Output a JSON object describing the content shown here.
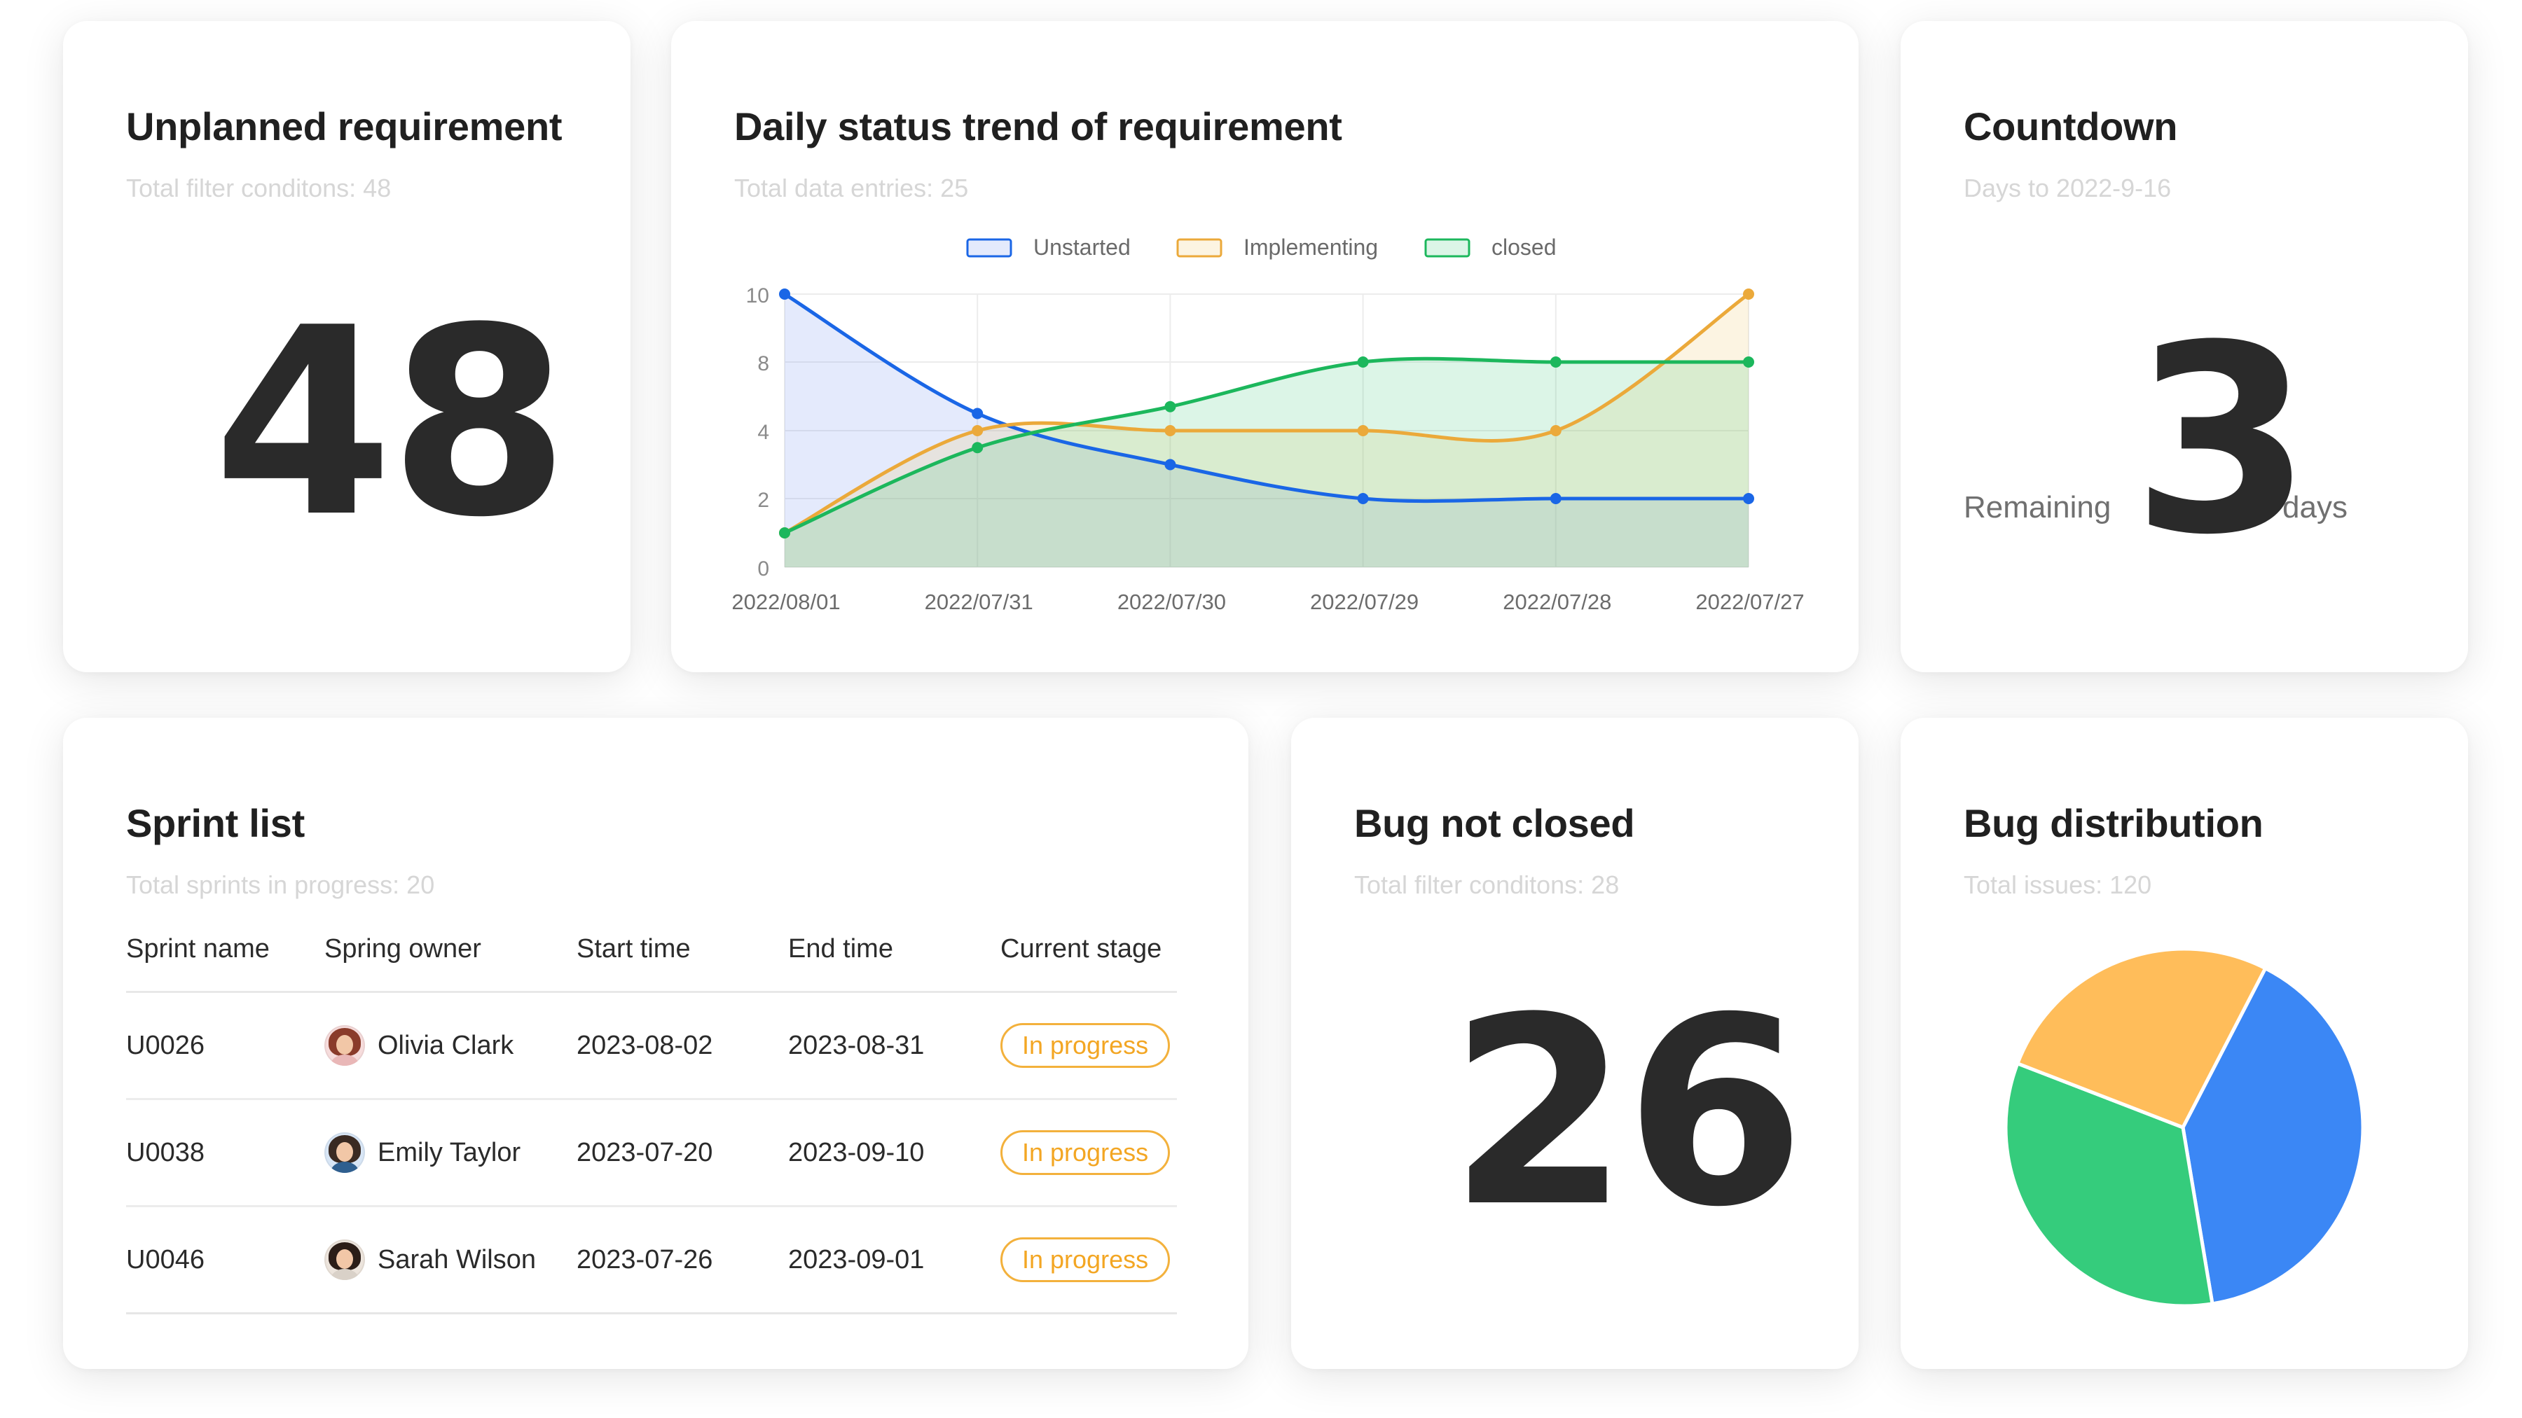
{
  "unplanned": {
    "title": "Unplanned requirement",
    "subtitle": "Total filter conditons: 48",
    "value": "48"
  },
  "trend": {
    "title": "Daily status trend of requirement",
    "subtitle": "Total data entries: 25"
  },
  "countdown": {
    "title": "Countdown",
    "subtitle": "Days to 2022-9-16",
    "prefix": "Remaining",
    "value": "3",
    "suffix": "days"
  },
  "sprint": {
    "title": "Sprint list",
    "subtitle": "Total sprints in progress: 20",
    "columns": [
      "Sprint name",
      "Spring owner",
      "Start time",
      "End time",
      "Current stage"
    ],
    "rows": [
      {
        "name": "U0026",
        "owner": "Olivia Clark",
        "start": "2023-08-02",
        "end": "2023-08-31",
        "stage": "In progress"
      },
      {
        "name": "U0038",
        "owner": "Emily Taylor",
        "start": "2023-07-20",
        "end": "2023-09-10",
        "stage": "In progress"
      },
      {
        "name": "U0046",
        "owner": "Sarah Wilson",
        "start": "2023-07-26",
        "end": "2023-09-01",
        "stage": "In progress"
      }
    ]
  },
  "bug": {
    "title": "Bug not closed",
    "subtitle": "Total filter conditons: 28",
    "value": "26"
  },
  "distribution": {
    "title": "Bug distribution",
    "subtitle": "Total issues: 120"
  },
  "colors": {
    "blue": "#1a66e6",
    "orange": "#eba93a",
    "green": "#1cb75c",
    "pie_blue": "#3b87f5",
    "pie_green": "#35cc7c",
    "pie_orange": "#ffbd5a"
  },
  "chart_data": [
    {
      "type": "area",
      "categories": [
        "2022/08/01",
        "2022/07/31",
        "2022/07/30",
        "2022/07/29",
        "2022/07/28",
        "2022/07/27"
      ],
      "yticks": [
        0,
        2,
        4,
        8,
        10
      ],
      "legend_position": "top-center",
      "grid": true,
      "series": [
        {
          "name": "Unstarted",
          "values": [
            10,
            5,
            3,
            2,
            2,
            2
          ]
        },
        {
          "name": "Implementing",
          "values": [
            1,
            4,
            4,
            4,
            4,
            10
          ]
        },
        {
          "name": "closed",
          "values": [
            1,
            3.5,
            5.4,
            8,
            8,
            8
          ]
        }
      ]
    },
    {
      "type": "pie",
      "values": [
        48,
        40,
        32
      ],
      "colors": [
        "#3b87f5",
        "#35cc7c",
        "#ffbd5a"
      ]
    }
  ]
}
